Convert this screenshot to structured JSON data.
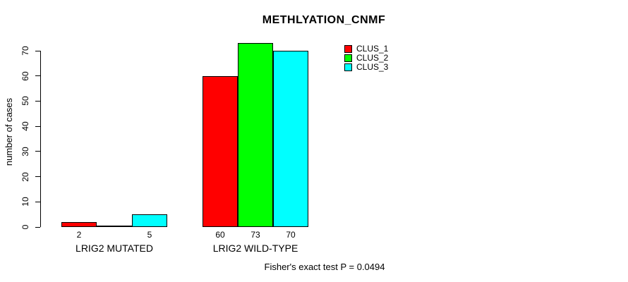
{
  "chart_data": {
    "type": "bar",
    "title": "METHLYATION_CNMF",
    "ylabel": "number of cases",
    "xlabel": "",
    "categories": [
      "LRIG2 MUTATED",
      "LRIG2 WILD-TYPE"
    ],
    "series": [
      {
        "name": "CLUS_1",
        "color": "#FF0000",
        "values": [
          2,
          60
        ]
      },
      {
        "name": "CLUS_2",
        "color": "#00FF00",
        "values": [
          0,
          73
        ]
      },
      {
        "name": "CLUS_3",
        "color": "#00FFFF",
        "values": [
          5,
          70
        ]
      }
    ],
    "bar_value_labels": [
      [
        "2",
        "",
        "5"
      ],
      [
        "60",
        "73",
        "70"
      ]
    ],
    "yticks": [
      0,
      10,
      20,
      30,
      40,
      50,
      60,
      70
    ],
    "ylim": [
      0,
      70
    ],
    "grid": false,
    "legend_position": "top-right",
    "legend_labels": [
      "CLUS_1",
      "CLUS_2",
      "CLUS_3"
    ],
    "annotation": "Fisher's exact test P = 0.0494",
    "background_color": "#FFFFFF",
    "axis_color": "#000000"
  }
}
